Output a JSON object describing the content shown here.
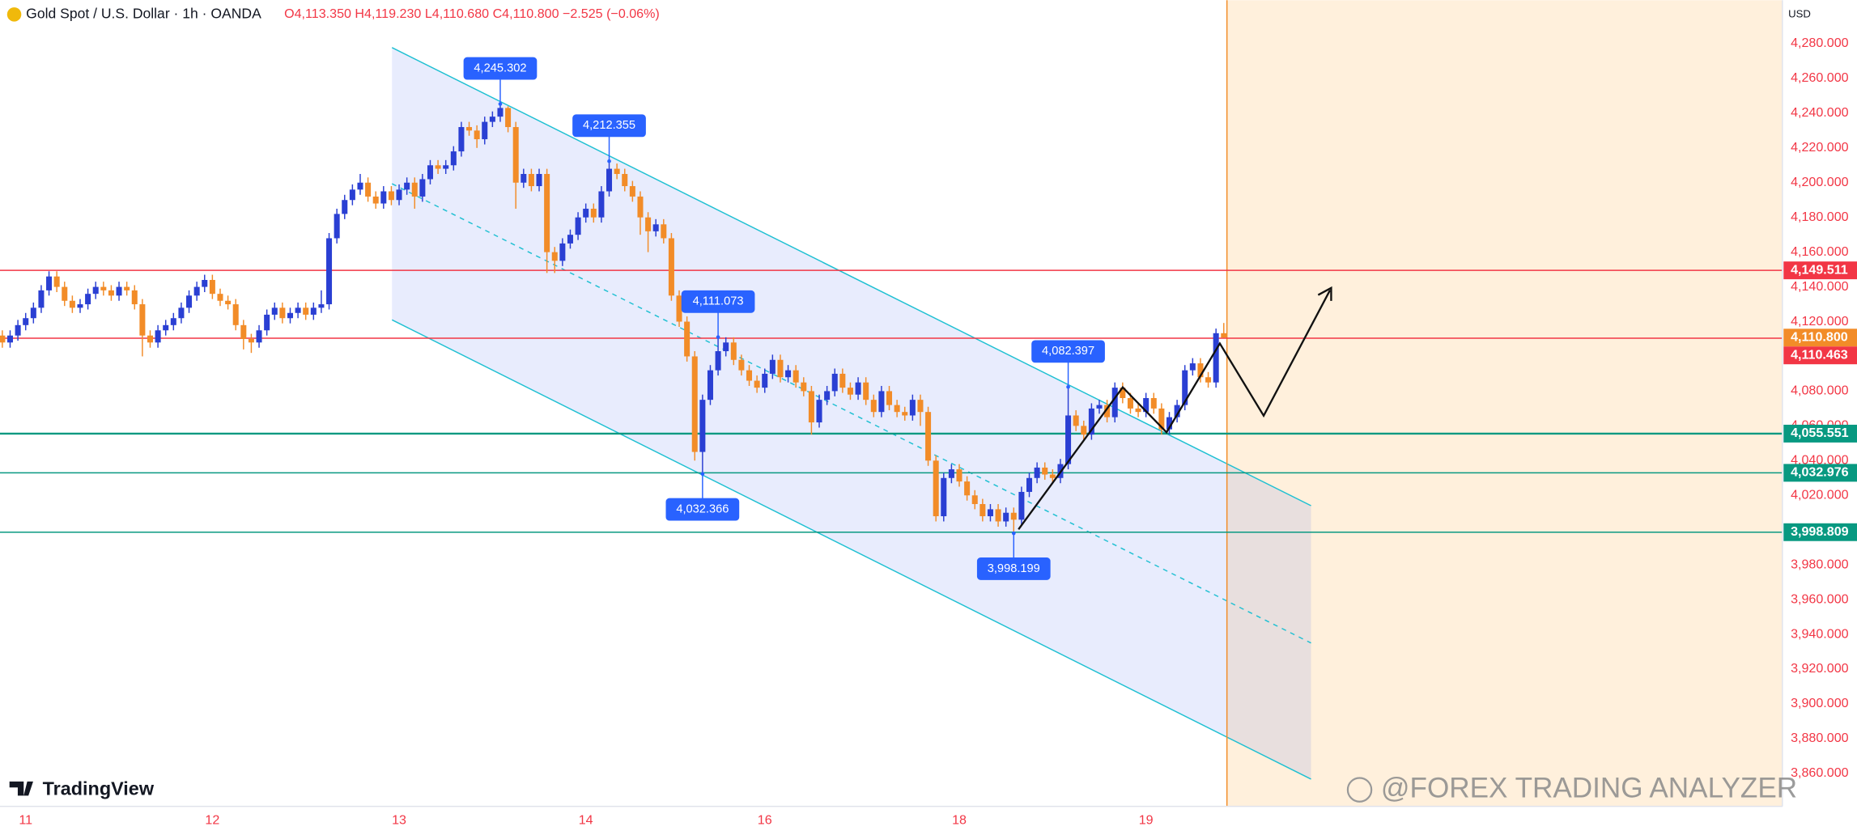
{
  "chart_data": {
    "type": "candlestick",
    "title": "Gold Spot / U.S. Dollar · 1h · OANDA",
    "subtitle": "O4,113.350 H4,119.230 L4,110.680 C4,110.800 −2.525 (−0.06%)",
    "currency": "USD",
    "brand": "TradingView",
    "watermark": "@FOREX TRADING ANALYZER",
    "up_color": "#2a3fd3",
    "down_color": "#f28c28",
    "xlim": [
      -0.3,
      228.8
    ],
    "ylim": [
      3841,
      4305
    ],
    "xticks": [
      {
        "value": 3,
        "label": "11"
      },
      {
        "value": 27,
        "label": "12"
      },
      {
        "value": 51,
        "label": "13"
      },
      {
        "value": 75,
        "label": "14"
      },
      {
        "value": 98,
        "label": "16"
      },
      {
        "value": 123,
        "label": "18"
      },
      {
        "value": 147,
        "label": "19"
      }
    ],
    "yticks": [
      {
        "value": 4280,
        "label": "4,280.000"
      },
      {
        "value": 4260,
        "label": "4,260.000"
      },
      {
        "value": 4240,
        "label": "4,240.000"
      },
      {
        "value": 4220,
        "label": "4,220.000"
      },
      {
        "value": 4200,
        "label": "4,200.000"
      },
      {
        "value": 4180,
        "label": "4,180.000"
      },
      {
        "value": 4160,
        "label": "4,160.000"
      },
      {
        "value": 4140,
        "label": "4,140.000"
      },
      {
        "value": 4120,
        "label": "4,120.000"
      },
      {
        "value": 4080,
        "label": "4,080.000"
      },
      {
        "value": 4060,
        "label": "4,060.000"
      },
      {
        "value": 4040,
        "label": "4,040.000"
      },
      {
        "value": 4020,
        "label": "4,020.000"
      },
      {
        "value": 3980,
        "label": "3,980.000"
      },
      {
        "value": 3960,
        "label": "3,960.000"
      },
      {
        "value": 3940,
        "label": "3,940.000"
      },
      {
        "value": 3920,
        "label": "3,920.000"
      },
      {
        "value": 3900,
        "label": "3,900.000"
      },
      {
        "value": 3880,
        "label": "3,880.000"
      },
      {
        "value": 3860,
        "label": "3,860.000"
      }
    ],
    "levels": [
      {
        "value": 4149.511,
        "label": "4,149.511",
        "color": "#f23645"
      },
      {
        "value": 4110.463,
        "label": "4,110.463",
        "color": "#f23645"
      },
      {
        "value": 4055.551,
        "label": "4,055.551",
        "color": "#089981"
      },
      {
        "value": 4032.976,
        "label": "4,032.976",
        "color": "#089981"
      },
      {
        "value": 3998.809,
        "label": "3,998.809",
        "color": "#089981"
      }
    ],
    "last_price": {
      "value": 4110.8,
      "label": "4,110.800",
      "color": "#f28c28"
    },
    "annotations": [
      {
        "value": 4245.302,
        "label": "4,245.302"
      },
      {
        "value": 4212.355,
        "label": "4,212.355"
      },
      {
        "value": 4111.073,
        "label": "4,111.073"
      },
      {
        "value": 4032.366,
        "label": "4,032.366"
      },
      {
        "value": 3998.199,
        "label": "3,998.199"
      },
      {
        "value": 4082.397,
        "label": "4,082.397"
      }
    ],
    "candles": [
      [
        4112,
        4115,
        4105,
        4108
      ],
      [
        4108,
        4115,
        4105,
        4112
      ],
      [
        4112,
        4121,
        4109,
        4118
      ],
      [
        4118,
        4125,
        4115,
        4122
      ],
      [
        4122,
        4131,
        4119,
        4128
      ],
      [
        4128,
        4141,
        4125,
        4138
      ],
      [
        4138,
        4149,
        4135,
        4146
      ],
      [
        4146,
        4149,
        4137,
        4140
      ],
      [
        4140,
        4143,
        4129,
        4132
      ],
      [
        4132,
        4135,
        4125,
        4128
      ],
      [
        4128,
        4133,
        4125,
        4130
      ],
      [
        4130,
        4139,
        4127,
        4136
      ],
      [
        4136,
        4143,
        4133,
        4140
      ],
      [
        4140,
        4143,
        4135,
        4138
      ],
      [
        4138,
        4141,
        4132,
        4135
      ],
      [
        4135,
        4143,
        4132,
        4140
      ],
      [
        4140,
        4143,
        4135,
        4138
      ],
      [
        4138,
        4141,
        4127,
        4130
      ],
      [
        4130,
        4133,
        4100,
        4112
      ],
      [
        4112,
        4115,
        4105,
        4108
      ],
      [
        4108,
        4118,
        4105,
        4115
      ],
      [
        4115,
        4121,
        4112,
        4118
      ],
      [
        4118,
        4125,
        4115,
        4122
      ],
      [
        4122,
        4131,
        4119,
        4128
      ],
      [
        4128,
        4138,
        4125,
        4135
      ],
      [
        4135,
        4143,
        4132,
        4140
      ],
      [
        4140,
        4147,
        4137,
        4144
      ],
      [
        4144,
        4147,
        4133,
        4136
      ],
      [
        4136,
        4139,
        4129,
        4132
      ],
      [
        4132,
        4135,
        4127,
        4130
      ],
      [
        4130,
        4133,
        4115,
        4118
      ],
      [
        4118,
        4121,
        4104,
        4110
      ],
      [
        4110,
        4113,
        4102,
        4108
      ],
      [
        4108,
        4118,
        4105,
        4115
      ],
      [
        4115,
        4127,
        4112,
        4124
      ],
      [
        4124,
        4131,
        4121,
        4128
      ],
      [
        4128,
        4131,
        4119,
        4122
      ],
      [
        4122,
        4128,
        4119,
        4125
      ],
      [
        4125,
        4131,
        4122,
        4128
      ],
      [
        4128,
        4131,
        4121,
        4124
      ],
      [
        4124,
        4131,
        4121,
        4128
      ],
      [
        4128,
        4138,
        4125,
        4130
      ],
      [
        4130,
        4171,
        4127,
        4168
      ],
      [
        4168,
        4185,
        4165,
        4182
      ],
      [
        4182,
        4193,
        4179,
        4190
      ],
      [
        4190,
        4199,
        4187,
        4196
      ],
      [
        4196,
        4205,
        4193,
        4200
      ],
      [
        4200,
        4203,
        4189,
        4192
      ],
      [
        4192,
        4195,
        4185,
        4188
      ],
      [
        4188,
        4198,
        4185,
        4195
      ],
      [
        4195,
        4198,
        4187,
        4190
      ],
      [
        4190,
        4199,
        4187,
        4196
      ],
      [
        4196,
        4203,
        4193,
        4200
      ],
      [
        4200,
        4203,
        4185,
        4192
      ],
      [
        4192,
        4205,
        4189,
        4202
      ],
      [
        4202,
        4213,
        4199,
        4210
      ],
      [
        4210,
        4213,
        4205,
        4208
      ],
      [
        4208,
        4213,
        4205,
        4210
      ],
      [
        4210,
        4221,
        4207,
        4218
      ],
      [
        4218,
        4235,
        4215,
        4232
      ],
      [
        4232,
        4235,
        4227,
        4230
      ],
      [
        4230,
        4233,
        4220,
        4225
      ],
      [
        4225,
        4238,
        4222,
        4235
      ],
      [
        4235,
        4241,
        4232,
        4238
      ],
      [
        4238,
        4245.302,
        4235,
        4243
      ],
      [
        4243,
        4244,
        4229,
        4232
      ],
      [
        4232,
        4235,
        4185,
        4200
      ],
      [
        4200,
        4208,
        4197,
        4205
      ],
      [
        4205,
        4208,
        4195,
        4198
      ],
      [
        4198,
        4208,
        4195,
        4205
      ],
      [
        4205,
        4208,
        4148,
        4160
      ],
      [
        4160,
        4163,
        4148,
        4155
      ],
      [
        4155,
        4168,
        4152,
        4165
      ],
      [
        4165,
        4173,
        4162,
        4170
      ],
      [
        4170,
        4183,
        4167,
        4180
      ],
      [
        4180,
        4188,
        4177,
        4185
      ],
      [
        4185,
        4188,
        4177,
        4180
      ],
      [
        4180,
        4198,
        4177,
        4195
      ],
      [
        4195,
        4212.355,
        4192,
        4208
      ],
      [
        4208,
        4211,
        4202,
        4205
      ],
      [
        4205,
        4208,
        4195,
        4198
      ],
      [
        4198,
        4201,
        4189,
        4192
      ],
      [
        4192,
        4195,
        4170,
        4180
      ],
      [
        4180,
        4183,
        4160,
        4172
      ],
      [
        4172,
        4179,
        4169,
        4176
      ],
      [
        4176,
        4179,
        4165,
        4168
      ],
      [
        4168,
        4171,
        4132,
        4135
      ],
      [
        4135,
        4138,
        4117,
        4120
      ],
      [
        4120,
        4123,
        4097,
        4100
      ],
      [
        4100,
        4103,
        4040,
        4045
      ],
      [
        4045,
        4078,
        4032.366,
        4075
      ],
      [
        4075,
        4095,
        4072,
        4092
      ],
      [
        4092,
        4111.073,
        4089,
        4103
      ],
      [
        4103,
        4111,
        4100,
        4108
      ],
      [
        4108,
        4111,
        4095,
        4098
      ],
      [
        4098,
        4101,
        4089,
        4092
      ],
      [
        4092,
        4095,
        4083,
        4086
      ],
      [
        4086,
        4089,
        4079,
        4082
      ],
      [
        4082,
        4093,
        4079,
        4090
      ],
      [
        4090,
        4101,
        4087,
        4098
      ],
      [
        4098,
        4101,
        4085,
        4088
      ],
      [
        4088,
        4095,
        4085,
        4092
      ],
      [
        4092,
        4095,
        4082,
        4085
      ],
      [
        4085,
        4088,
        4077,
        4080
      ],
      [
        4080,
        4083,
        4055,
        4062
      ],
      [
        4062,
        4078,
        4059,
        4075
      ],
      [
        4075,
        4083,
        4072,
        4080
      ],
      [
        4080,
        4093,
        4077,
        4090
      ],
      [
        4090,
        4093,
        4079,
        4082
      ],
      [
        4082,
        4085,
        4075,
        4078
      ],
      [
        4078,
        4088,
        4075,
        4085
      ],
      [
        4085,
        4088,
        4072,
        4075
      ],
      [
        4075,
        4078,
        4065,
        4068
      ],
      [
        4068,
        4083,
        4065,
        4080
      ],
      [
        4080,
        4083,
        4069,
        4072
      ],
      [
        4072,
        4075,
        4065,
        4068
      ],
      [
        4068,
        4071,
        4063,
        4066
      ],
      [
        4066,
        4078,
        4063,
        4075
      ],
      [
        4075,
        4078,
        4060,
        4068
      ],
      [
        4068,
        4071,
        4037,
        4040
      ],
      [
        4040,
        4043,
        4005,
        4008
      ],
      [
        4008,
        4033,
        4005,
        4030
      ],
      [
        4030,
        4038,
        4027,
        4035
      ],
      [
        4035,
        4038,
        4025,
        4028
      ],
      [
        4028,
        4031,
        4017,
        4020
      ],
      [
        4020,
        4023,
        4012,
        4015
      ],
      [
        4015,
        4018,
        4005,
        4008
      ],
      [
        4008,
        4015,
        4005,
        4012
      ],
      [
        4012,
        4015,
        4002,
        4005
      ],
      [
        4005,
        4013,
        4002,
        4010
      ],
      [
        4010,
        4013,
        3998.199,
        4006
      ],
      [
        4006,
        4025,
        4003,
        4022
      ],
      [
        4022,
        4033,
        4019,
        4030
      ],
      [
        4030,
        4039,
        4027,
        4036
      ],
      [
        4036,
        4039,
        4029,
        4032
      ],
      [
        4032,
        4035,
        4027,
        4030
      ],
      [
        4030,
        4041,
        4027,
        4038
      ],
      [
        4038,
        4082.397,
        4035,
        4066
      ],
      [
        4066,
        4069,
        4057,
        4060
      ],
      [
        4060,
        4063,
        4052,
        4055
      ],
      [
        4055,
        4073,
        4052,
        4070
      ],
      [
        4070,
        4075,
        4067,
        4072
      ],
      [
        4072,
        4075,
        4062,
        4065
      ],
      [
        4065,
        4085,
        4062,
        4082
      ],
      [
        4082,
        4085,
        4073,
        4076
      ],
      [
        4076,
        4079,
        4067,
        4070
      ],
      [
        4070,
        4073,
        4065,
        4068
      ],
      [
        4068,
        4079,
        4065,
        4076
      ],
      [
        4076,
        4079,
        4067,
        4070
      ],
      [
        4070,
        4073,
        4055,
        4058
      ],
      [
        4058,
        4068,
        4055,
        4065
      ],
      [
        4065,
        4075,
        4062,
        4072
      ],
      [
        4072,
        4095,
        4069,
        4092
      ],
      [
        4092,
        4099,
        4089,
        4096
      ],
      [
        4096,
        4099,
        4085,
        4088
      ],
      [
        4088,
        4091,
        4082,
        4085
      ],
      [
        4085,
        4116,
        4082,
        4113.35
      ],
      [
        4113.35,
        4119.23,
        4110.68,
        4110.8
      ]
    ]
  }
}
